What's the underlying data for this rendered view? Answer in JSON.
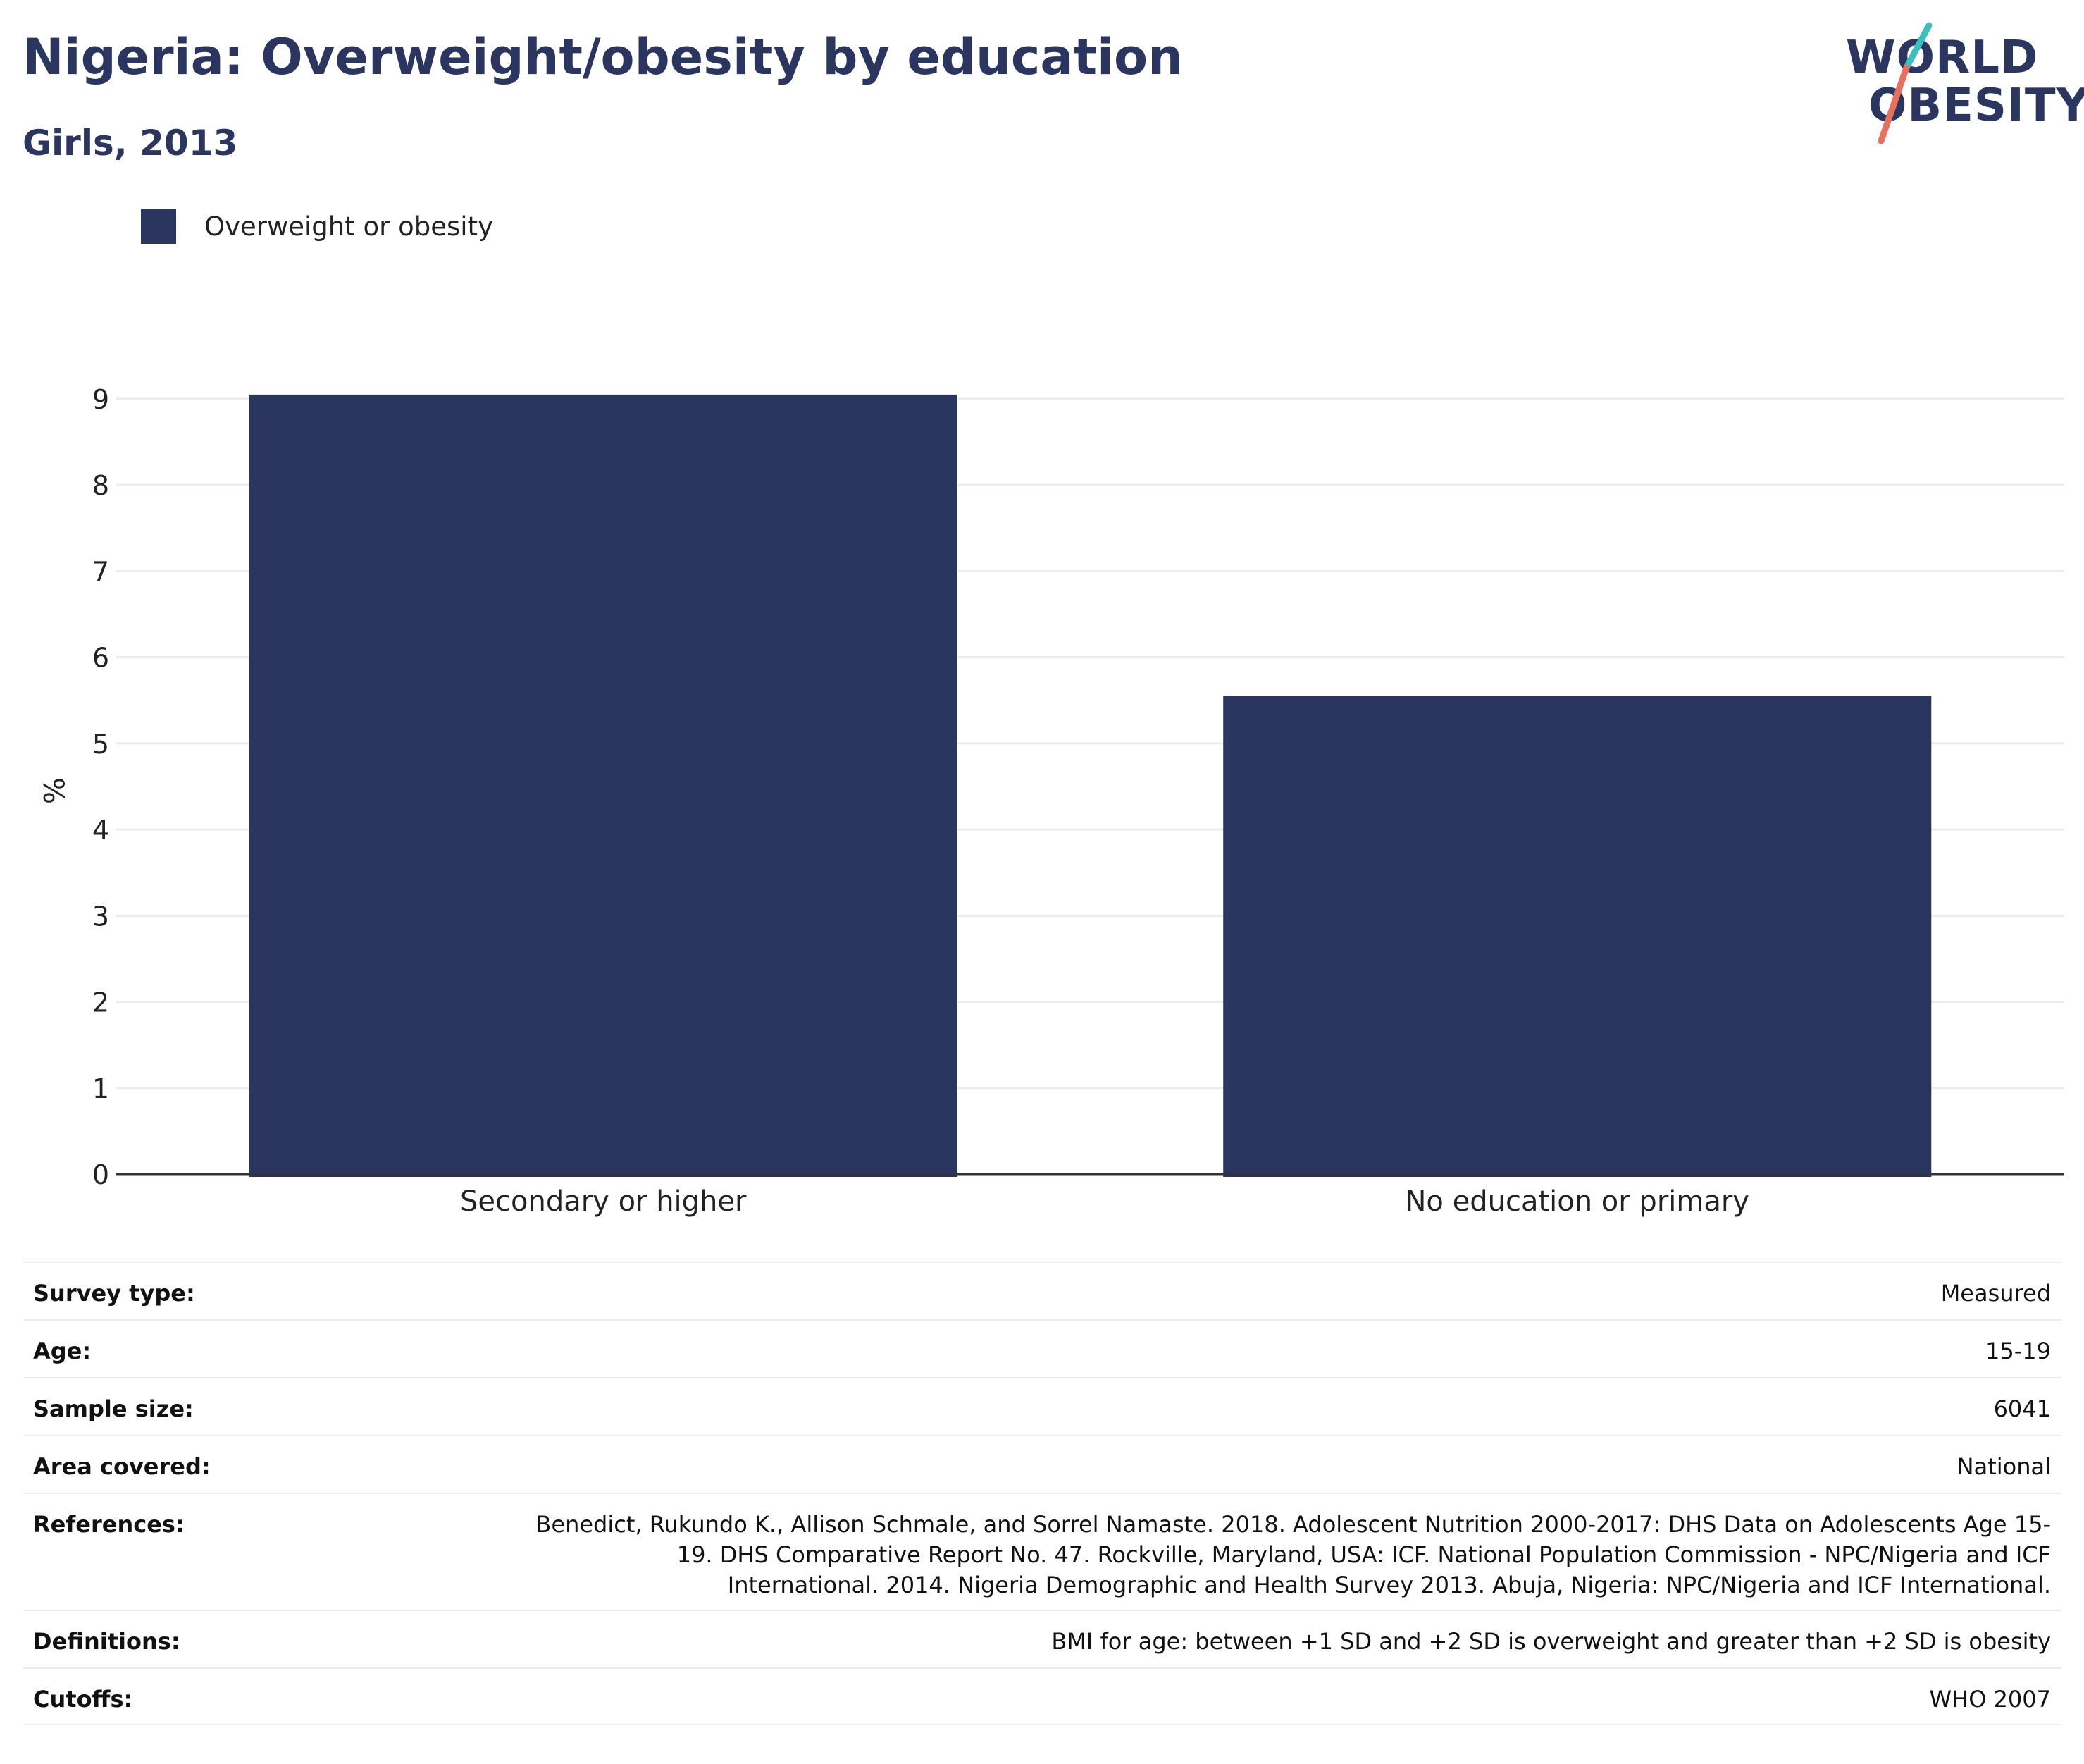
{
  "header": {
    "title": "Nigeria: Overweight/obesity by education",
    "subtitle": "Girls, 2013"
  },
  "logo": {
    "line1": "WORLD",
    "line2": "OBESITY"
  },
  "colors": {
    "bar": "#2a365f",
    "title": "#2a365f",
    "grid": "#ececec",
    "logo_teal": "#3bbfbf",
    "logo_coral": "#e8705f"
  },
  "chart_data": {
    "type": "bar",
    "title": "Nigeria: Overweight/obesity by education",
    "subtitle": "Girls, 2013",
    "categories": [
      "Secondary or higher",
      "No education or primary"
    ],
    "series": [
      {
        "name": "Overweight or obesity",
        "values": [
          9.05,
          5.55
        ]
      }
    ],
    "xlabel": "",
    "ylabel": "%",
    "ylim": [
      0,
      9
    ],
    "yticks": [
      0,
      1,
      2,
      3,
      4,
      5,
      6,
      7,
      8,
      9
    ],
    "grid": true,
    "legend": "top-left"
  },
  "meta": {
    "survey_type": {
      "label": "Survey type:",
      "value": "Measured"
    },
    "age": {
      "label": "Age:",
      "value": "15-19"
    },
    "sample_size": {
      "label": "Sample size:",
      "value": "6041"
    },
    "area_covered": {
      "label": "Area covered:",
      "value": "National"
    },
    "references": {
      "label": "References:",
      "value": "Benedict, Rukundo K., Allison Schmale, and Sorrel Namaste. 2018. Adolescent Nutrition 2000-2017: DHS Data on Adolescents Age 15-19. DHS Comparative Report No. 47. Rockville, Maryland, USA: ICF. National Population Commission - NPC/Nigeria and ICF International. 2014. Nigeria Demographic and Health Survey 2013. Abuja, Nigeria: NPC/Nigeria and ICF International."
    },
    "definitions": {
      "label": "Definitions:",
      "value": "BMI for age: between +1 SD and +2 SD is overweight and greater than +2 SD is obesity"
    },
    "cutoffs": {
      "label": "Cutoffs:",
      "value": "WHO 2007"
    }
  }
}
